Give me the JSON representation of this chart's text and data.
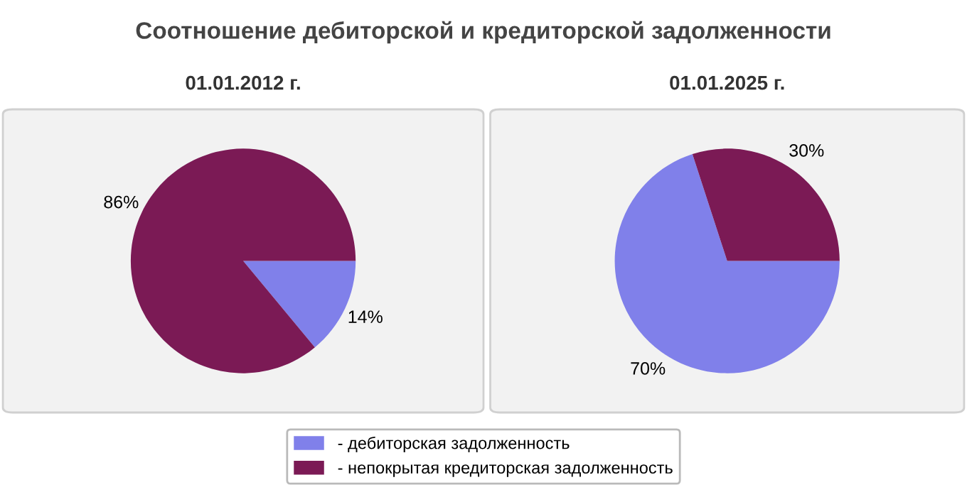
{
  "chart_data": [
    {
      "type": "pie",
      "title": "Соотношение дебиторской и кредиторской задолженности",
      "subtitle": "01.01.2012 г.",
      "categories": [
        "- дебиторская задолженность",
        "- непокрытая кредиторская задолженность"
      ],
      "values": [
        14,
        86
      ],
      "value_labels": [
        "14%",
        "86%"
      ],
      "colors": [
        "#8080ea",
        "#7b1a55"
      ],
      "legend": "bottom"
    },
    {
      "type": "pie",
      "subtitle": "01.01.2025 г.",
      "categories": [
        null,
        null
      ],
      "values": [
        70,
        30
      ],
      "value_labels": [
        "70%",
        "30%"
      ],
      "colors": [
        "#8080ea",
        "#7b1a55"
      ]
    }
  ]
}
